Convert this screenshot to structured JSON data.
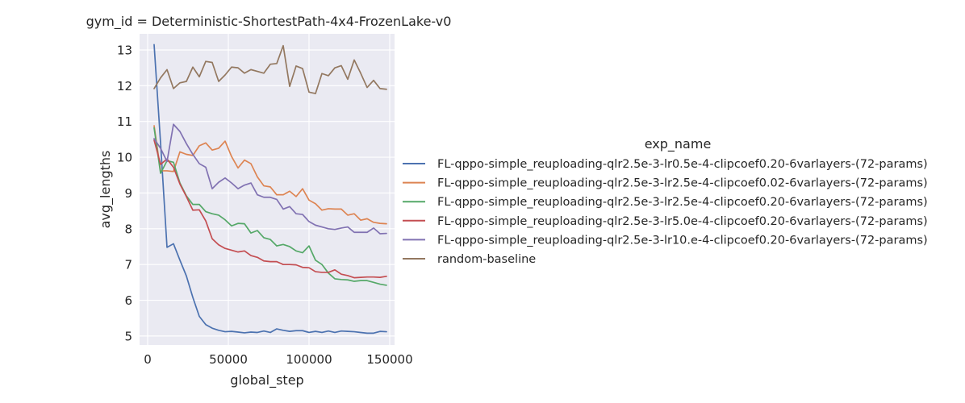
{
  "chart_data": {
    "type": "line",
    "title": "gym_id = Deterministic-ShortestPath-4x4-FrozenLake-v0",
    "xlabel": "global_step",
    "ylabel": "avg_lengths",
    "xlim": [
      -5000,
      153000
    ],
    "ylim": [
      4.75,
      13.45
    ],
    "xticks": [
      0,
      50000,
      100000,
      150000
    ],
    "xtick_labels": [
      "0",
      "50000",
      "100000",
      "150000"
    ],
    "yticks": [
      5,
      6,
      7,
      8,
      9,
      10,
      11,
      12,
      13
    ],
    "ytick_labels": [
      "5",
      "6",
      "7",
      "8",
      "9",
      "10",
      "11",
      "12",
      "13"
    ],
    "grid": true,
    "legend_title": "exp_name",
    "legend_position": "right",
    "x": [
      4000,
      8000,
      12000,
      16000,
      20000,
      24000,
      28000,
      32000,
      36000,
      40000,
      44000,
      48000,
      52000,
      56000,
      60000,
      64000,
      68000,
      72000,
      76000,
      80000,
      84000,
      88000,
      92000,
      96000,
      100000,
      104000,
      108000,
      112000,
      116000,
      120000,
      124000,
      128000,
      132000,
      136000,
      140000,
      144000,
      148000
    ],
    "series": [
      {
        "name": "FL-qppo-simple_reuploading-qlr2.5e-3-lr0.5e-4-clipcoef0.20-6varlayers-(72-params)",
        "color": "#4c72b0",
        "values": [
          13.15,
          10.4,
          7.48,
          7.58,
          7.12,
          6.68,
          6.08,
          5.55,
          5.32,
          5.22,
          5.16,
          5.12,
          5.13,
          5.11,
          5.09,
          5.11,
          5.1,
          5.14,
          5.1,
          5.2,
          5.16,
          5.13,
          5.15,
          5.15,
          5.1,
          5.13,
          5.1,
          5.14,
          5.1,
          5.14,
          5.13,
          5.12,
          5.1,
          5.08,
          5.08,
          5.13,
          5.12
        ]
      },
      {
        "name": "FL-qppo-simple_reuploading-qlr2.5e-3-lr2.5e-4-clipcoef0.02-6varlayers-(72-params)",
        "color": "#dd8452",
        "values": [
          10.88,
          9.62,
          9.62,
          9.6,
          10.15,
          10.08,
          10.05,
          10.32,
          10.4,
          10.2,
          10.25,
          10.45,
          10.02,
          9.7,
          9.92,
          9.82,
          9.45,
          9.2,
          9.17,
          8.95,
          8.95,
          9.05,
          8.9,
          9.12,
          8.8,
          8.7,
          8.52,
          8.56,
          8.55,
          8.55,
          8.38,
          8.42,
          8.24,
          8.28,
          8.18,
          8.15,
          8.14
        ]
      },
      {
        "name": "FL-qppo-simple_reuploading-qlr2.5e-3-lr2.5e-4-clipcoef0.20-6varlayers-(72-params)",
        "color": "#55a868",
        "values": [
          10.82,
          9.55,
          9.9,
          9.86,
          9.28,
          8.92,
          8.68,
          8.68,
          8.48,
          8.42,
          8.38,
          8.25,
          8.08,
          8.15,
          8.14,
          7.88,
          7.95,
          7.75,
          7.7,
          7.52,
          7.56,
          7.5,
          7.38,
          7.33,
          7.52,
          7.12,
          7.0,
          6.76,
          6.6,
          6.58,
          6.57,
          6.53,
          6.55,
          6.55,
          6.5,
          6.45,
          6.42
        ]
      },
      {
        "name": "FL-qppo-simple_reuploading-qlr2.5e-3-lr5.0e-4-clipcoef0.20-6varlayers-(72-params)",
        "color": "#c44e52",
        "values": [
          10.48,
          9.8,
          9.95,
          9.72,
          9.25,
          8.9,
          8.52,
          8.53,
          8.22,
          7.72,
          7.55,
          7.45,
          7.4,
          7.35,
          7.38,
          7.25,
          7.2,
          7.1,
          7.08,
          7.08,
          7.0,
          7.0,
          6.99,
          6.92,
          6.91,
          6.8,
          6.78,
          6.78,
          6.85,
          6.73,
          6.69,
          6.63,
          6.64,
          6.65,
          6.65,
          6.64,
          6.67
        ]
      },
      {
        "name": "FL-qppo-simple_reuploading-qlr2.5e-3-lr10.e-4-clipcoef0.20-6varlayers-(72-params)",
        "color": "#8172b2",
        "values": [
          10.52,
          10.25,
          9.88,
          10.92,
          10.72,
          10.38,
          10.08,
          9.82,
          9.72,
          9.12,
          9.3,
          9.42,
          9.28,
          9.12,
          9.22,
          9.28,
          8.95,
          8.88,
          8.88,
          8.82,
          8.55,
          8.62,
          8.42,
          8.4,
          8.2,
          8.1,
          8.05,
          8.0,
          7.98,
          8.02,
          8.05,
          7.9,
          7.9,
          7.9,
          8.02,
          7.86,
          7.87
        ]
      },
      {
        "name": "random-baseline",
        "color": "#937860",
        "values": [
          11.92,
          12.22,
          12.45,
          11.92,
          12.08,
          12.12,
          12.52,
          12.25,
          12.68,
          12.65,
          12.12,
          12.3,
          12.52,
          12.5,
          12.35,
          12.45,
          12.4,
          12.35,
          12.6,
          12.62,
          13.12,
          11.98,
          12.55,
          12.48,
          11.82,
          11.78,
          12.34,
          12.28,
          12.5,
          12.56,
          12.18,
          12.72,
          12.35,
          11.95,
          12.15,
          11.92,
          11.9
        ]
      }
    ]
  }
}
